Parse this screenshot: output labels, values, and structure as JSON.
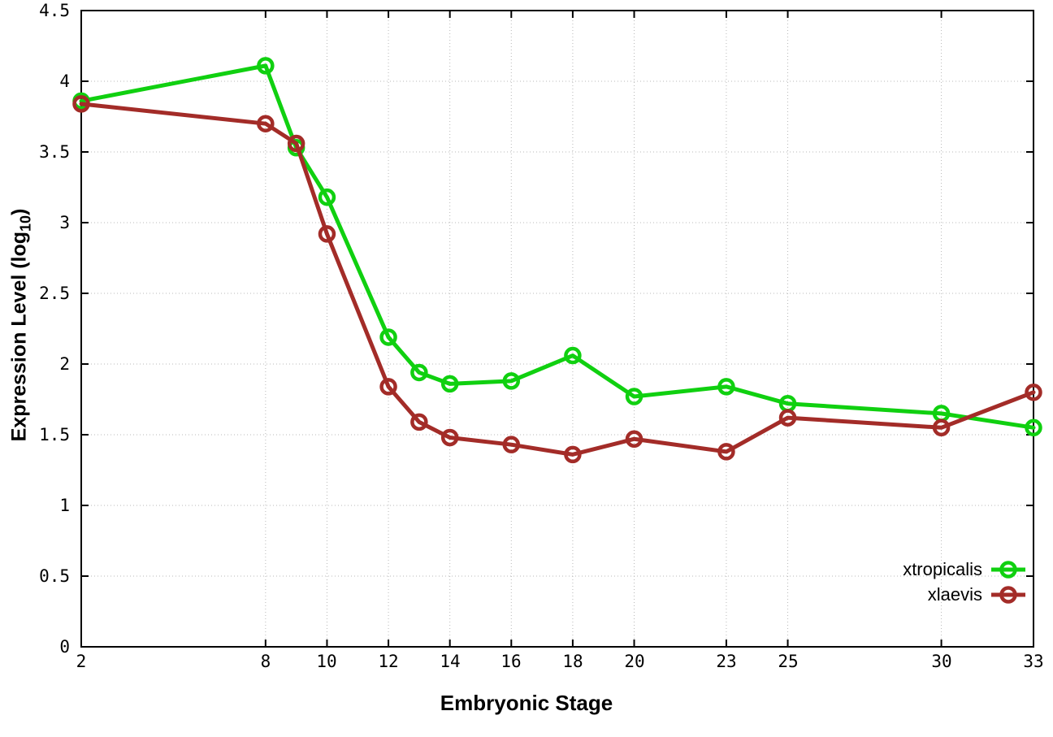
{
  "chart_data": {
    "type": "line",
    "title": "",
    "xlabel": "Embryonic Stage",
    "ylabel_main": "Expression Level (log",
    "ylabel_sub": "10",
    "ylabel_close": ")",
    "xlim": [
      2,
      33
    ],
    "ylim": [
      0,
      4.5
    ],
    "grid": true,
    "grid_style": "dotted",
    "legend_position": "inside-right-bottom",
    "x": [
      2,
      8,
      9,
      10,
      12,
      13,
      14,
      16,
      18,
      20,
      23,
      25,
      30,
      33
    ],
    "x_tick_labels": [
      "2",
      "8",
      "10",
      "12",
      "14",
      "16",
      "18",
      "20",
      "23",
      "25",
      "30",
      "33"
    ],
    "x_tick_values": [
      2,
      8,
      10,
      12,
      14,
      16,
      18,
      20,
      23,
      25,
      30,
      33
    ],
    "y_tick_labels": [
      "0",
      "0.5",
      "1",
      "1.5",
      "2",
      "2.5",
      "3",
      "3.5",
      "4",
      "4.5"
    ],
    "y_tick_values": [
      0,
      0.5,
      1,
      1.5,
      2,
      2.5,
      3,
      3.5,
      4,
      4.5
    ],
    "series": [
      {
        "name": "xtropicalis",
        "color": "#10d010",
        "marker": "open-circle",
        "values": [
          3.86,
          4.11,
          3.53,
          3.18,
          2.19,
          1.94,
          1.86,
          1.88,
          2.06,
          1.77,
          1.84,
          1.72,
          1.65,
          1.55
        ]
      },
      {
        "name": "xlaevis",
        "color": "#a32c28",
        "marker": "open-circle",
        "values": [
          3.84,
          3.7,
          3.56,
          2.92,
          1.84,
          1.59,
          1.48,
          1.43,
          1.36,
          1.47,
          1.38,
          1.62,
          1.55,
          1.8
        ]
      }
    ],
    "colors": {
      "border": "#000000",
      "grid": "#b8b8b8",
      "background": "#ffffff"
    }
  }
}
